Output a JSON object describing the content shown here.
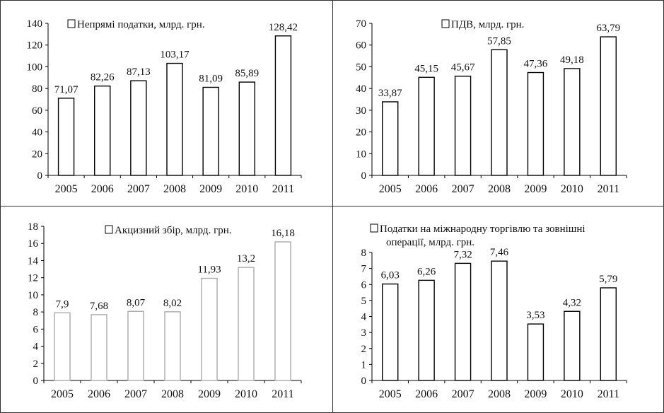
{
  "chart_data": [
    {
      "type": "bar",
      "title": "Непрямі податки, млрд. грн.",
      "categories": [
        "2005",
        "2006",
        "2007",
        "2008",
        "2009",
        "2010",
        "2011"
      ],
      "values": [
        71.07,
        82.26,
        87.13,
        103.17,
        81.09,
        85.89,
        128.42
      ],
      "value_labels": [
        "71,07",
        "82,26",
        "87,13",
        "103,17",
        "81,09",
        "85,89",
        "128,42"
      ],
      "yticks": [
        0,
        20,
        40,
        60,
        80,
        100,
        120,
        140
      ],
      "ylim": [
        0,
        140
      ],
      "xlabel": "",
      "ylabel": "",
      "legend": "top",
      "grid": false,
      "bar_stroke": "#000000"
    },
    {
      "type": "bar",
      "title": "ПДВ, млрд. грн.",
      "categories": [
        "2005",
        "2006",
        "2007",
        "2008",
        "2009",
        "2010",
        "2011"
      ],
      "values": [
        33.87,
        45.15,
        45.67,
        57.85,
        47.36,
        49.18,
        63.79
      ],
      "value_labels": [
        "33,87",
        "45,15",
        "45,67",
        "57,85",
        "47,36",
        "49,18",
        "63,79"
      ],
      "yticks": [
        0,
        10,
        20,
        30,
        40,
        50,
        60,
        70
      ],
      "ylim": [
        0,
        70
      ],
      "xlabel": "",
      "ylabel": "",
      "legend": "top",
      "grid": false,
      "bar_stroke": "#000000"
    },
    {
      "type": "bar",
      "title": "Акцизний збір, млрд. грн.",
      "categories": [
        "2005",
        "2006",
        "2007",
        "2008",
        "2009",
        "2010",
        "2011"
      ],
      "values": [
        7.9,
        7.68,
        8.07,
        8.02,
        11.93,
        13.2,
        16.18
      ],
      "value_labels": [
        "7,9",
        "7,68",
        "8,07",
        "8,02",
        "11,93",
        "13,2",
        "16,18"
      ],
      "yticks": [
        0,
        2,
        4,
        6,
        8,
        10,
        12,
        14,
        16,
        18
      ],
      "ylim": [
        0,
        18
      ],
      "xlabel": "",
      "ylabel": "",
      "legend": "top",
      "grid": false,
      "bar_stroke": "#aaaaaa"
    },
    {
      "type": "bar",
      "title": "Податки на міжнародну торгівлю та зовнішні операції, млрд. грн.",
      "title_lines": [
        "Податки на міжнародну торгівлю та зовнішні",
        "операції, млрд. грн."
      ],
      "categories": [
        "2005",
        "2006",
        "2007",
        "2008",
        "2009",
        "2010",
        "2011"
      ],
      "values": [
        6.03,
        6.26,
        7.32,
        7.46,
        3.53,
        4.32,
        5.79
      ],
      "value_labels": [
        "6,03",
        "6,26",
        "7,32",
        "7,46",
        "3,53",
        "4,32",
        "5,79"
      ],
      "yticks": [
        0,
        1,
        2,
        3,
        4,
        5,
        6,
        7,
        8
      ],
      "ylim": [
        0,
        8
      ],
      "xlabel": "",
      "ylabel": "",
      "legend": "top",
      "grid": false,
      "bar_stroke": "#000000"
    }
  ]
}
